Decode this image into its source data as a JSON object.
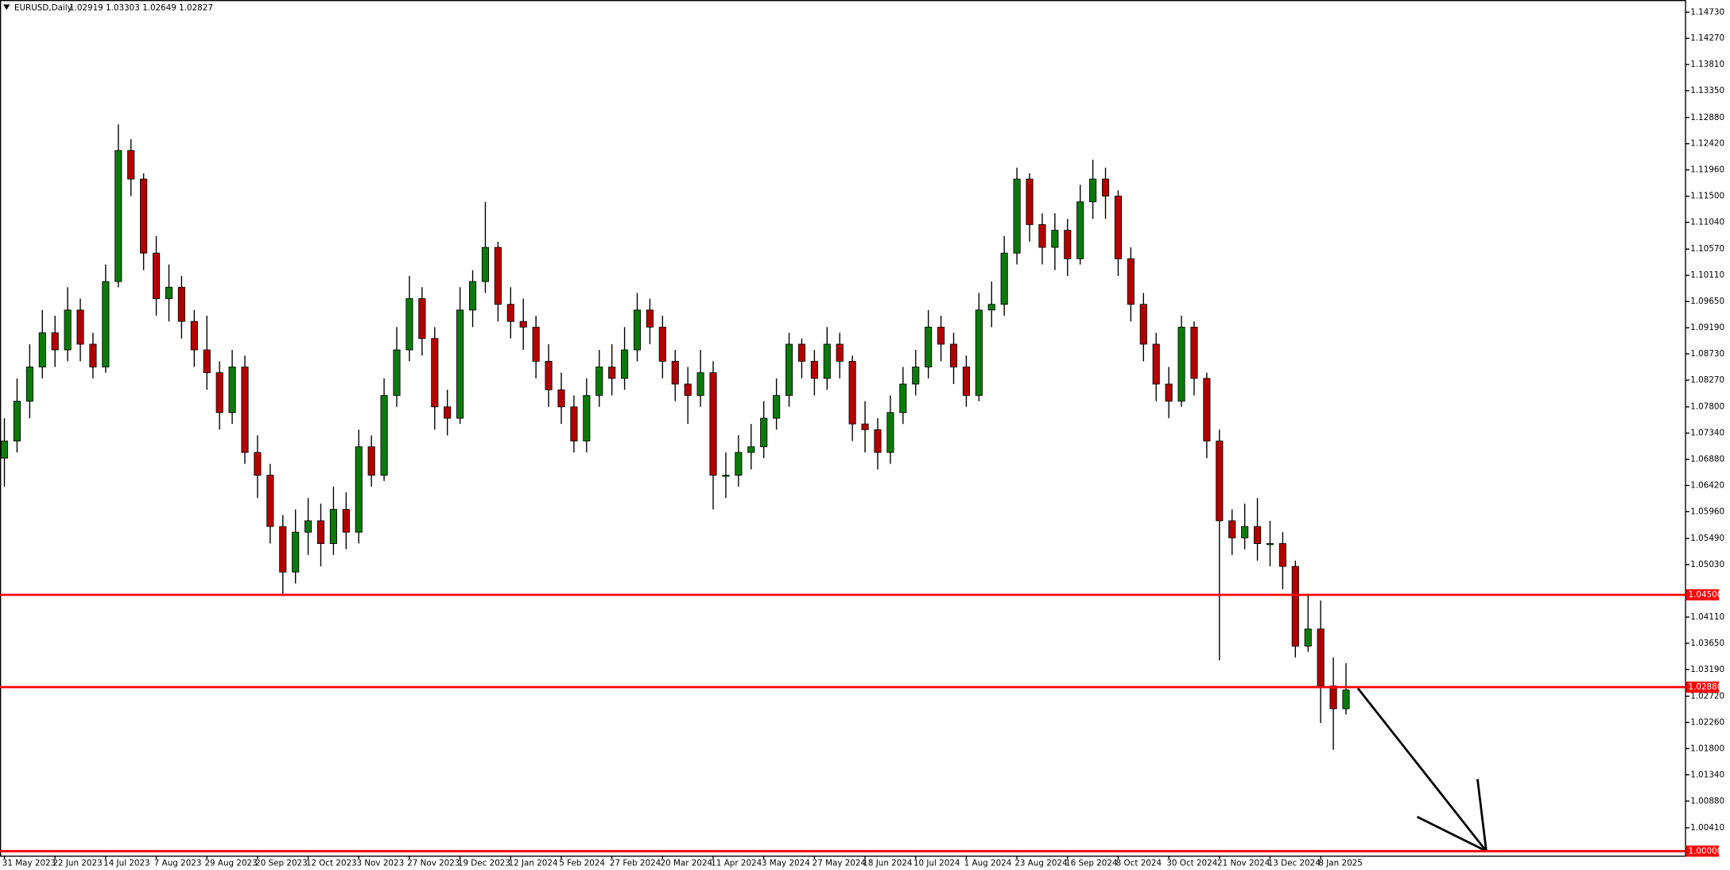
{
  "chart_data": {
    "type": "candlestick",
    "title": "EURUSD,Daily",
    "subtitle": "1.02919 1.03303 1.02649 1.02827",
    "categories": [
      "31 May 2023",
      null,
      null,
      null,
      "22 Jun 2023",
      null,
      null,
      null,
      "14 Jul 2023",
      null,
      null,
      null,
      "7 Aug 2023",
      null,
      null,
      null,
      "29 Aug 2023",
      null,
      null,
      null,
      "20 Sep 2023",
      null,
      null,
      null,
      "12 Oct 2023",
      null,
      null,
      null,
      "3 Nov 2023",
      null,
      null,
      null,
      "27 Nov 2023",
      null,
      null,
      null,
      "19 Dec 2023",
      null,
      null,
      null,
      "12 Jan 2024",
      null,
      null,
      null,
      "5 Feb 2024",
      null,
      null,
      null,
      "27 Feb 2024",
      null,
      null,
      null,
      "20 Mar 2024",
      null,
      null,
      null,
      "11 Apr 2024",
      null,
      null,
      null,
      "3 May 2024",
      null,
      null,
      null,
      "27 May 2024",
      null,
      null,
      null,
      "18 Jun 2024",
      null,
      null,
      null,
      "10 Jul 2024",
      null,
      null,
      null,
      "1 Aug 2024",
      null,
      null,
      null,
      "23 Aug 2024",
      null,
      null,
      null,
      "16 Sep 2024",
      null,
      null,
      null,
      "8 Oct 2024",
      null,
      null,
      null,
      "30 Oct 2024",
      null,
      null,
      null,
      "21 Nov 2024",
      null,
      null,
      null,
      "13 Dec 2024",
      null,
      null,
      null,
      "8 Jan 2025",
      null,
      null
    ],
    "open": [
      1.069,
      1.072,
      1.079,
      1.085,
      1.091,
      1.088,
      1.095,
      1.089,
      1.085,
      1.1,
      1.123,
      1.118,
      1.105,
      1.097,
      1.099,
      1.093,
      1.088,
      1.084,
      1.077,
      1.085,
      1.07,
      1.066,
      1.057,
      1.049,
      1.056,
      1.058,
      1.054,
      1.06,
      1.056,
      1.071,
      1.066,
      1.08,
      1.088,
      1.097,
      1.09,
      1.078,
      1.076,
      1.095,
      1.1,
      1.106,
      1.096,
      1.093,
      1.092,
      1.086,
      1.081,
      1.078,
      1.072,
      1.08,
      1.085,
      1.083,
      1.088,
      1.095,
      1.092,
      1.086,
      1.082,
      1.08,
      1.084,
      1.066,
      1.066,
      1.07,
      1.071,
      1.076,
      1.08,
      1.089,
      1.086,
      1.083,
      1.089,
      1.086,
      1.075,
      1.074,
      1.07,
      1.077,
      1.082,
      1.085,
      1.092,
      1.089,
      1.085,
      1.08,
      1.095,
      1.096,
      1.105,
      1.118,
      1.11,
      1.106,
      1.109,
      1.104,
      1.114,
      1.118,
      1.115,
      1.104,
      1.096,
      1.089,
      1.082,
      1.079,
      1.092,
      1.083,
      1.072,
      1.058,
      1.055,
      1.057,
      1.054,
      1.054,
      1.05,
      1.036,
      1.039,
      1.029,
      1.025
    ],
    "high": [
      1.076,
      1.083,
      1.089,
      1.095,
      1.094,
      1.099,
      1.097,
      1.091,
      1.103,
      1.1276,
      1.125,
      1.119,
      1.108,
      1.103,
      1.101,
      1.095,
      1.094,
      1.086,
      1.088,
      1.087,
      1.073,
      1.068,
      1.059,
      1.06,
      1.062,
      1.061,
      1.064,
      1.063,
      1.074,
      1.073,
      1.083,
      1.092,
      1.101,
      1.099,
      1.092,
      1.081,
      1.099,
      1.102,
      1.114,
      1.107,
      1.099,
      1.097,
      1.094,
      1.089,
      1.084,
      1.08,
      1.083,
      1.088,
      1.089,
      1.092,
      1.098,
      1.097,
      1.094,
      1.088,
      1.085,
      1.088,
      1.086,
      1.07,
      1.073,
      1.075,
      1.079,
      1.083,
      1.091,
      1.09,
      1.088,
      1.092,
      1.091,
      1.087,
      1.079,
      1.076,
      1.08,
      1.085,
      1.088,
      1.095,
      1.094,
      1.091,
      1.087,
      1.098,
      1.1,
      1.108,
      1.12,
      1.119,
      1.112,
      1.112,
      1.111,
      1.117,
      1.1214,
      1.12,
      1.116,
      1.106,
      1.098,
      1.091,
      1.085,
      1.094,
      1.093,
      1.084,
      1.074,
      1.06,
      1.061,
      1.062,
      1.058,
      1.056,
      1.051,
      1.045,
      1.044,
      1.034,
      1.033
    ],
    "low": [
      1.064,
      1.07,
      1.076,
      1.083,
      1.085,
      1.086,
      1.086,
      1.083,
      1.084,
      1.099,
      1.115,
      1.102,
      1.094,
      1.093,
      1.09,
      1.085,
      1.081,
      1.074,
      1.075,
      1.068,
      1.062,
      1.054,
      1.0448,
      1.047,
      1.052,
      1.05,
      1.052,
      1.053,
      1.054,
      1.064,
      1.065,
      1.078,
      1.086,
      1.087,
      1.074,
      1.073,
      1.075,
      1.092,
      1.098,
      1.093,
      1.09,
      1.088,
      1.083,
      1.078,
      1.075,
      1.07,
      1.07,
      1.078,
      1.08,
      1.081,
      1.086,
      1.089,
      1.083,
      1.079,
      1.075,
      1.078,
      1.06,
      1.062,
      1.064,
      1.067,
      1.069,
      1.074,
      1.078,
      1.083,
      1.08,
      1.081,
      1.083,
      1.072,
      1.07,
      1.067,
      1.068,
      1.075,
      1.08,
      1.083,
      1.086,
      1.082,
      1.078,
      1.079,
      1.092,
      1.094,
      1.103,
      1.107,
      1.103,
      1.102,
      1.101,
      1.103,
      1.111,
      1.111,
      1.101,
      1.093,
      1.086,
      1.079,
      1.076,
      1.078,
      1.08,
      1.069,
      1.0335,
      1.052,
      1.053,
      1.051,
      1.05,
      1.046,
      1.034,
      1.035,
      1.0225,
      1.0178,
      1.024
    ],
    "close": [
      1.072,
      1.079,
      1.085,
      1.091,
      1.088,
      1.095,
      1.089,
      1.085,
      1.1,
      1.123,
      1.118,
      1.105,
      1.097,
      1.099,
      1.093,
      1.088,
      1.084,
      1.077,
      1.085,
      1.07,
      1.066,
      1.057,
      1.049,
      1.056,
      1.058,
      1.054,
      1.06,
      1.056,
      1.071,
      1.066,
      1.08,
      1.088,
      1.097,
      1.09,
      1.078,
      1.076,
      1.095,
      1.1,
      1.106,
      1.096,
      1.093,
      1.092,
      1.086,
      1.081,
      1.078,
      1.072,
      1.08,
      1.085,
      1.083,
      1.088,
      1.095,
      1.092,
      1.086,
      1.082,
      1.08,
      1.084,
      1.066,
      1.066,
      1.07,
      1.071,
      1.076,
      1.08,
      1.089,
      1.086,
      1.083,
      1.089,
      1.086,
      1.075,
      1.074,
      1.07,
      1.077,
      1.082,
      1.085,
      1.092,
      1.089,
      1.085,
      1.08,
      1.095,
      1.096,
      1.105,
      1.118,
      1.11,
      1.106,
      1.109,
      1.104,
      1.114,
      1.118,
      1.115,
      1.104,
      1.096,
      1.089,
      1.082,
      1.079,
      1.092,
      1.083,
      1.072,
      1.058,
      1.055,
      1.057,
      1.054,
      1.054,
      1.05,
      1.036,
      1.039,
      1.029,
      1.025,
      1.0283
    ],
    "up_color": "#0b7a0b",
    "down_color": "#b40000",
    "levels": [
      {
        "value": 1.045,
        "label": "1.04500"
      },
      {
        "value": 1.0288,
        "label": "1.02880"
      },
      {
        "value": 1.0,
        "label": "1.00000"
      }
    ],
    "level_color": "#ff0000",
    "ylim": [
      0.99922,
      1.14943
    ],
    "yticks": [
      {
        "value": 1.1473,
        "label": "1.14730"
      },
      {
        "value": 1.1427,
        "label": "1.14270"
      },
      {
        "value": 1.1381,
        "label": "1.13810"
      },
      {
        "value": 1.1335,
        "label": "1.13350"
      },
      {
        "value": 1.1288,
        "label": "1.12880"
      },
      {
        "value": 1.1242,
        "label": "1.12420"
      },
      {
        "value": 1.1196,
        "label": "1.11960"
      },
      {
        "value": 1.115,
        "label": "1.11500"
      },
      {
        "value": 1.1104,
        "label": "1.11040"
      },
      {
        "value": 1.1057,
        "label": "1.10570"
      },
      {
        "value": 1.1011,
        "label": "1.10110"
      },
      {
        "value": 1.0965,
        "label": "1.09650"
      },
      {
        "value": 1.0919,
        "label": "1.09190"
      },
      {
        "value": 1.0873,
        "label": "1.08730"
      },
      {
        "value": 1.0827,
        "label": "1.08270"
      },
      {
        "value": 1.078,
        "label": "1.07800"
      },
      {
        "value": 1.0734,
        "label": "1.07340"
      },
      {
        "value": 1.0688,
        "label": "1.06880"
      },
      {
        "value": 1.0642,
        "label": "1.06420"
      },
      {
        "value": 1.0596,
        "label": "1.05960"
      },
      {
        "value": 1.0549,
        "label": "1.05490"
      },
      {
        "value": 1.0503,
        "label": "1.05030"
      },
      {
        "value": 1.0411,
        "label": "1.04110"
      },
      {
        "value": 1.0365,
        "label": "1.03650"
      },
      {
        "value": 1.0319,
        "label": "1.03190"
      },
      {
        "value": 1.0272,
        "label": "1.02720"
      },
      {
        "value": 1.0226,
        "label": "1.02260"
      },
      {
        "value": 1.018,
        "label": "1.01800"
      },
      {
        "value": 1.0134,
        "label": "1.01340"
      },
      {
        "value": 1.0088,
        "label": "1.00880"
      },
      {
        "value": 1.0041,
        "label": "1.00410"
      }
    ],
    "grid": false
  }
}
